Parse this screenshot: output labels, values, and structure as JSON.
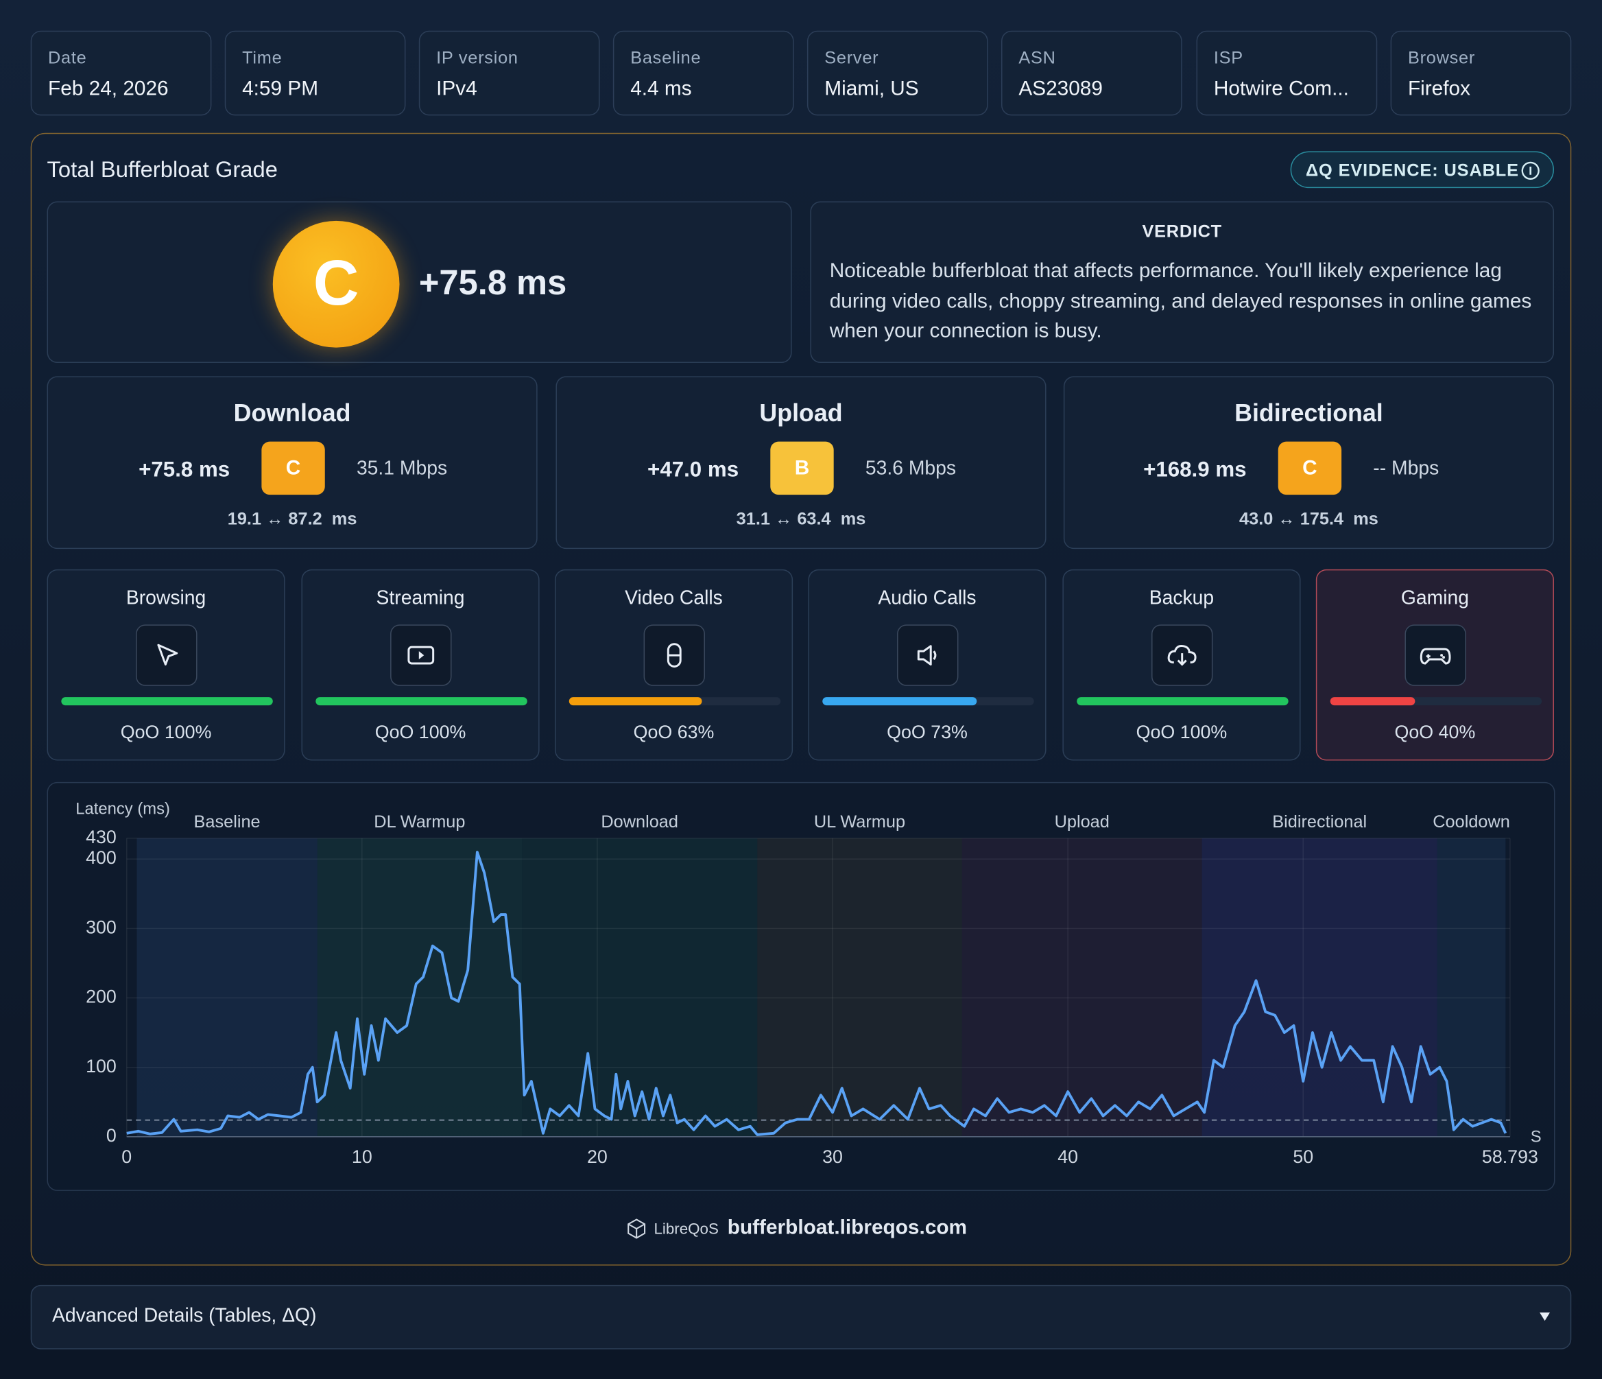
{
  "info": [
    {
      "label": "Date",
      "value": "Feb 24, 2026"
    },
    {
      "label": "Time",
      "value": "4:59 PM"
    },
    {
      "label": "IP version",
      "value": "IPv4"
    },
    {
      "label": "Baseline",
      "value": "4.4 ms"
    },
    {
      "label": "Server",
      "value": "Miami, US"
    },
    {
      "label": "ASN",
      "value": "AS23089"
    },
    {
      "label": "ISP",
      "value": "Hotwire Com..."
    },
    {
      "label": "Browser",
      "value": "Firefox"
    }
  ],
  "grade": {
    "title": "Total Bufferbloat Grade",
    "evidence": "ΔQ EVIDENCE: USABLE",
    "letter": "C",
    "value": "+75.8 ms",
    "verdict_title": "VERDICT",
    "verdict": "Noticeable bufferbloat that affects performance. You'll likely experience lag during video calls, choppy streaming, and delayed responses in online games when your connection is busy."
  },
  "directions": [
    {
      "name": "Download",
      "latency": "+75.8 ms",
      "grade": "C",
      "grade_color": "#f5a41c",
      "throughput": "35.1 Mbps",
      "range": "19.1 ↔ 87.2  ms"
    },
    {
      "name": "Upload",
      "latency": "+47.0 ms",
      "grade": "B",
      "grade_color": "#f7c23a",
      "throughput": "53.6 Mbps",
      "range": "31.1 ↔ 63.4  ms"
    },
    {
      "name": "Bidirectional",
      "latency": "+168.9 ms",
      "grade": "C",
      "grade_color": "#f5a41c",
      "throughput": "-- Mbps",
      "range": "43.0 ↔ 175.4  ms"
    }
  ],
  "qoo": [
    {
      "name": "Browsing",
      "value": 100,
      "label": "QoO 100%",
      "color": "#22c55e"
    },
    {
      "name": "Streaming",
      "value": 100,
      "label": "QoO 100%",
      "color": "#22c55e"
    },
    {
      "name": "Video Calls",
      "value": 63,
      "label": "QoO 63%",
      "color": "#f59e0b"
    },
    {
      "name": "Audio Calls",
      "value": 73,
      "label": "QoO 73%",
      "color": "#38a8f0"
    },
    {
      "name": "Backup",
      "value": 100,
      "label": "QoO 100%",
      "color": "#22c55e"
    },
    {
      "name": "Gaming",
      "value": 40,
      "label": "QoO 40%",
      "color": "#ef4444"
    }
  ],
  "chart_data": {
    "type": "line",
    "y_label": "Latency (ms)",
    "x_label": "S",
    "color": "#5aa2f5",
    "xlim": [
      0,
      58.793
    ],
    "xticks": [
      0,
      10,
      20,
      30,
      40,
      50,
      58.793
    ],
    "ylim": [
      0,
      430
    ],
    "yticks": [
      0,
      100,
      200,
      300,
      400,
      430
    ],
    "grid": true,
    "reference_line": 24,
    "phases": [
      {
        "name": "Baseline",
        "start": 0.43,
        "end": 8.1,
        "color": "rgba(60,110,180,0.16)"
      },
      {
        "name": "DL Warmup",
        "start": 8.1,
        "end": 16.8,
        "color": "rgba(40,150,110,0.14)"
      },
      {
        "name": "Download",
        "start": 16.8,
        "end": 26.8,
        "color": "rgba(30,120,90,0.14)"
      },
      {
        "name": "UL Warmup",
        "start": 26.8,
        "end": 35.5,
        "color": "rgba(130,115,60,0.12)"
      },
      {
        "name": "Upload",
        "start": 35.5,
        "end": 45.7,
        "color": "rgba(140,60,100,0.13)"
      },
      {
        "name": "Bidirectional",
        "start": 45.7,
        "end": 55.7,
        "color": "rgba(90,70,190,0.18)"
      },
      {
        "name": "Cooldown",
        "start": 55.7,
        "end": 58.6,
        "color": "rgba(60,110,180,0.14)"
      }
    ],
    "x": [
      0,
      0.5,
      1,
      1.5,
      2,
      2.3,
      3,
      3.5,
      4,
      4.3,
      4.8,
      5.2,
      5.6,
      6,
      6.5,
      7,
      7.4,
      7.7,
      7.9,
      8.1,
      8.4,
      8.9,
      9.1,
      9.5,
      9.8,
      10.1,
      10.4,
      10.7,
      11,
      11.5,
      11.9,
      12.3,
      12.6,
      13,
      13.4,
      13.8,
      14.1,
      14.5,
      14.9,
      15.2,
      15.6,
      15.9,
      16.1,
      16.4,
      16.7,
      16.9,
      17.2,
      17.7,
      18,
      18.4,
      18.8,
      19.2,
      19.6,
      19.9,
      20.3,
      20.6,
      20.8,
      21,
      21.3,
      21.6,
      21.9,
      22.2,
      22.5,
      22.8,
      23.1,
      23.4,
      23.7,
      24.1,
      24.6,
      25,
      25.5,
      26,
      26.5,
      26.8,
      27.5,
      28,
      28.5,
      29,
      29.5,
      30,
      30.4,
      30.8,
      31.3,
      32,
      32.6,
      33.2,
      33.7,
      34.1,
      34.6,
      35,
      35.6,
      36,
      36.5,
      37,
      37.5,
      38,
      38.5,
      39,
      39.5,
      40,
      40.5,
      41,
      41.5,
      42,
      42.5,
      43,
      43.5,
      44,
      44.5,
      45,
      45.5,
      45.8,
      46.2,
      46.6,
      47.1,
      47.5,
      48,
      48.4,
      48.8,
      49.2,
      49.6,
      50,
      50.4,
      50.8,
      51.2,
      51.6,
      52,
      52.5,
      53,
      53.4,
      53.8,
      54.2,
      54.6,
      55,
      55.4,
      55.8,
      56.1,
      56.4,
      56.8,
      57.2,
      57.6,
      58,
      58.4,
      58.6
    ],
    "values": [
      5,
      8,
      4,
      6,
      25,
      8,
      10,
      7,
      12,
      30,
      28,
      35,
      25,
      32,
      30,
      28,
      35,
      90,
      100,
      50,
      60,
      150,
      110,
      70,
      170,
      90,
      160,
      110,
      170,
      150,
      160,
      220,
      230,
      275,
      265,
      200,
      195,
      240,
      410,
      380,
      310,
      320,
      320,
      230,
      220,
      60,
      80,
      5,
      40,
      30,
      45,
      30,
      120,
      40,
      30,
      25,
      90,
      40,
      80,
      30,
      65,
      25,
      70,
      30,
      60,
      20,
      25,
      10,
      30,
      15,
      25,
      10,
      15,
      3,
      5,
      20,
      25,
      25,
      60,
      35,
      70,
      30,
      40,
      25,
      45,
      25,
      70,
      40,
      45,
      30,
      15,
      40,
      30,
      55,
      35,
      40,
      35,
      45,
      30,
      65,
      35,
      55,
      30,
      45,
      30,
      50,
      40,
      60,
      30,
      40,
      50,
      35,
      110,
      100,
      160,
      180,
      225,
      180,
      175,
      150,
      160,
      80,
      150,
      100,
      150,
      110,
      130,
      110,
      110,
      50,
      130,
      100,
      50,
      130,
      90,
      100,
      80,
      10,
      25,
      15,
      20,
      25,
      20,
      5
    ]
  },
  "footer": {
    "brand": "LibreQoS",
    "url": "bufferbloat.libreqos.com"
  },
  "advanced": "Advanced Details (Tables, ΔQ)"
}
